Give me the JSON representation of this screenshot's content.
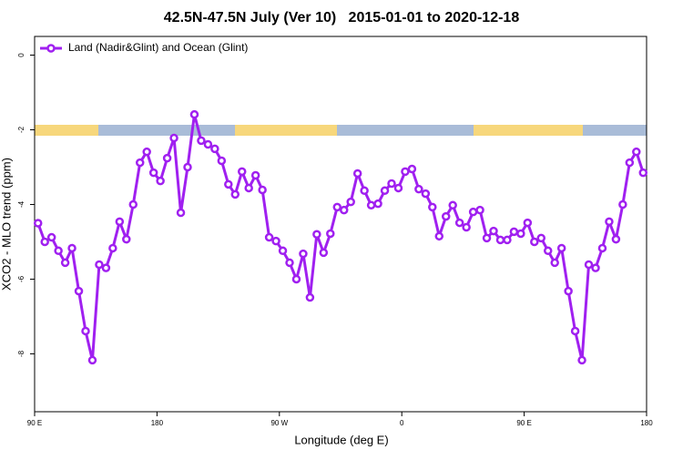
{
  "chart_data": {
    "type": "line",
    "title": "42.5N-47.5N July (Ver 10)   2015-01-01 to 2020-12-18",
    "x_label": "Longitude (deg E)",
    "y_label": "XCO2 - MLO trend (ppm)",
    "xlim": [
      90,
      540
    ],
    "ylim": [
      -9.55,
      0.5
    ],
    "xticks": [
      {
        "value": 90,
        "label": "90 E"
      },
      {
        "value": 180,
        "label": "180"
      },
      {
        "value": 270,
        "label": "90 W"
      },
      {
        "value": 360,
        "label": "0"
      },
      {
        "value": 450,
        "label": "90 E"
      },
      {
        "value": 540,
        "label": "180"
      }
    ],
    "yticks": [
      0,
      -2,
      -4,
      -6,
      -8
    ],
    "legend_position": "top-left",
    "x": [
      92.5,
      97.5,
      102.5,
      107.5,
      112.5,
      117.5,
      122.5,
      127.5,
      132.5,
      137.5,
      142.5,
      147.5,
      152.5,
      157.5,
      162.5,
      167.5,
      172.5,
      177.5,
      182.5,
      187.5,
      192.5,
      197.5,
      202.5,
      207.5,
      212.5,
      217.5,
      222.5,
      227.5,
      232.5,
      237.5,
      242.5,
      247.5,
      252.5,
      257.5,
      262.5,
      267.5,
      272.5,
      277.5,
      282.5,
      287.5,
      292.5,
      297.5,
      302.5,
      307.5,
      312.5,
      317.5,
      322.5,
      327.5,
      332.5,
      337.5,
      342.5,
      347.5,
      352.5,
      357.5,
      362.5,
      367.5,
      372.5,
      377.5,
      382.5,
      387.5,
      392.5,
      397.5,
      402.5,
      407.5,
      412.5,
      417.5,
      422.5,
      427.5,
      432.5,
      437.5,
      442.5,
      447.5,
      452.5,
      457.5,
      462.5,
      467.5,
      472.5,
      477.5,
      482.5,
      487.5,
      492.5,
      497.5,
      502.5,
      507.5,
      512.5,
      517.5,
      522.5,
      527.5,
      532.5,
      537.5
    ],
    "series": [
      {
        "name": "Land (Nadir&Glint) and Ocean (Glint)",
        "color": "#a020f0",
        "values": [
          -4.5,
          -5.0,
          -4.88,
          -5.24,
          -5.56,
          -5.17,
          -6.32,
          -7.39,
          -8.17,
          -5.61,
          -5.7,
          -5.17,
          -4.46,
          -4.93,
          -4.0,
          -2.88,
          -2.59,
          -3.15,
          -3.37,
          -2.76,
          -2.22,
          -4.22,
          -3.0,
          -1.59,
          -2.29,
          -2.39,
          -2.51,
          -2.83,
          -3.46,
          -3.73,
          -3.12,
          -3.56,
          -3.22,
          -3.61,
          -4.88,
          -4.98,
          -5.24,
          -5.56,
          -6.0,
          -5.32,
          -6.49,
          -4.8,
          -5.29,
          -4.78,
          -4.07,
          -4.15,
          -3.93,
          -3.17,
          -3.63,
          -4.02,
          -3.98,
          -3.63,
          -3.44,
          -3.56,
          -3.12,
          -3.05,
          -3.59,
          -3.71,
          -4.07,
          -4.85,
          -4.32,
          -4.02,
          -4.49,
          -4.61,
          -4.2,
          -4.15,
          -4.9,
          -4.71,
          -4.95,
          -4.95,
          -4.73,
          -4.78,
          -4.49,
          -5.0,
          -4.9,
          -5.24,
          -5.56,
          -5.17,
          -6.32,
          -7.39,
          -8.17,
          -5.61,
          -5.7,
          -5.17,
          -4.46,
          -4.93,
          -4.0,
          -2.88,
          -2.59,
          -3.15
        ]
      }
    ]
  }
}
